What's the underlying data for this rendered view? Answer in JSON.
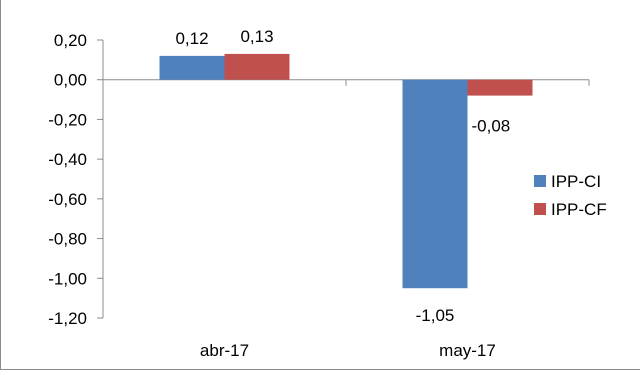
{
  "chart_data": {
    "type": "bar",
    "categories": [
      "abr-17",
      "may-17"
    ],
    "series": [
      {
        "name": "IPP-CI",
        "values": [
          0.12,
          -1.05
        ],
        "color": "#4f81bd"
      },
      {
        "name": "IPP-CF",
        "values": [
          0.13,
          -0.08
        ],
        "color": "#c0504d"
      }
    ],
    "data_labels": {
      "IPP-CI": [
        "0,12",
        "-1,05"
      ],
      "IPP-CF": [
        "0,13",
        "-0,08"
      ]
    },
    "y_ticks": [
      0.2,
      0.0,
      -0.2,
      -0.4,
      -0.6,
      -0.8,
      -1.0,
      -1.2
    ],
    "y_tick_labels": [
      "0,20",
      "0,00",
      "-0,20",
      "-0,40",
      "-0,60",
      "-0,80",
      "-1,00",
      "-1,20"
    ],
    "ylim": [
      -1.2,
      0.2
    ],
    "grid": false,
    "legend_position": "right"
  }
}
